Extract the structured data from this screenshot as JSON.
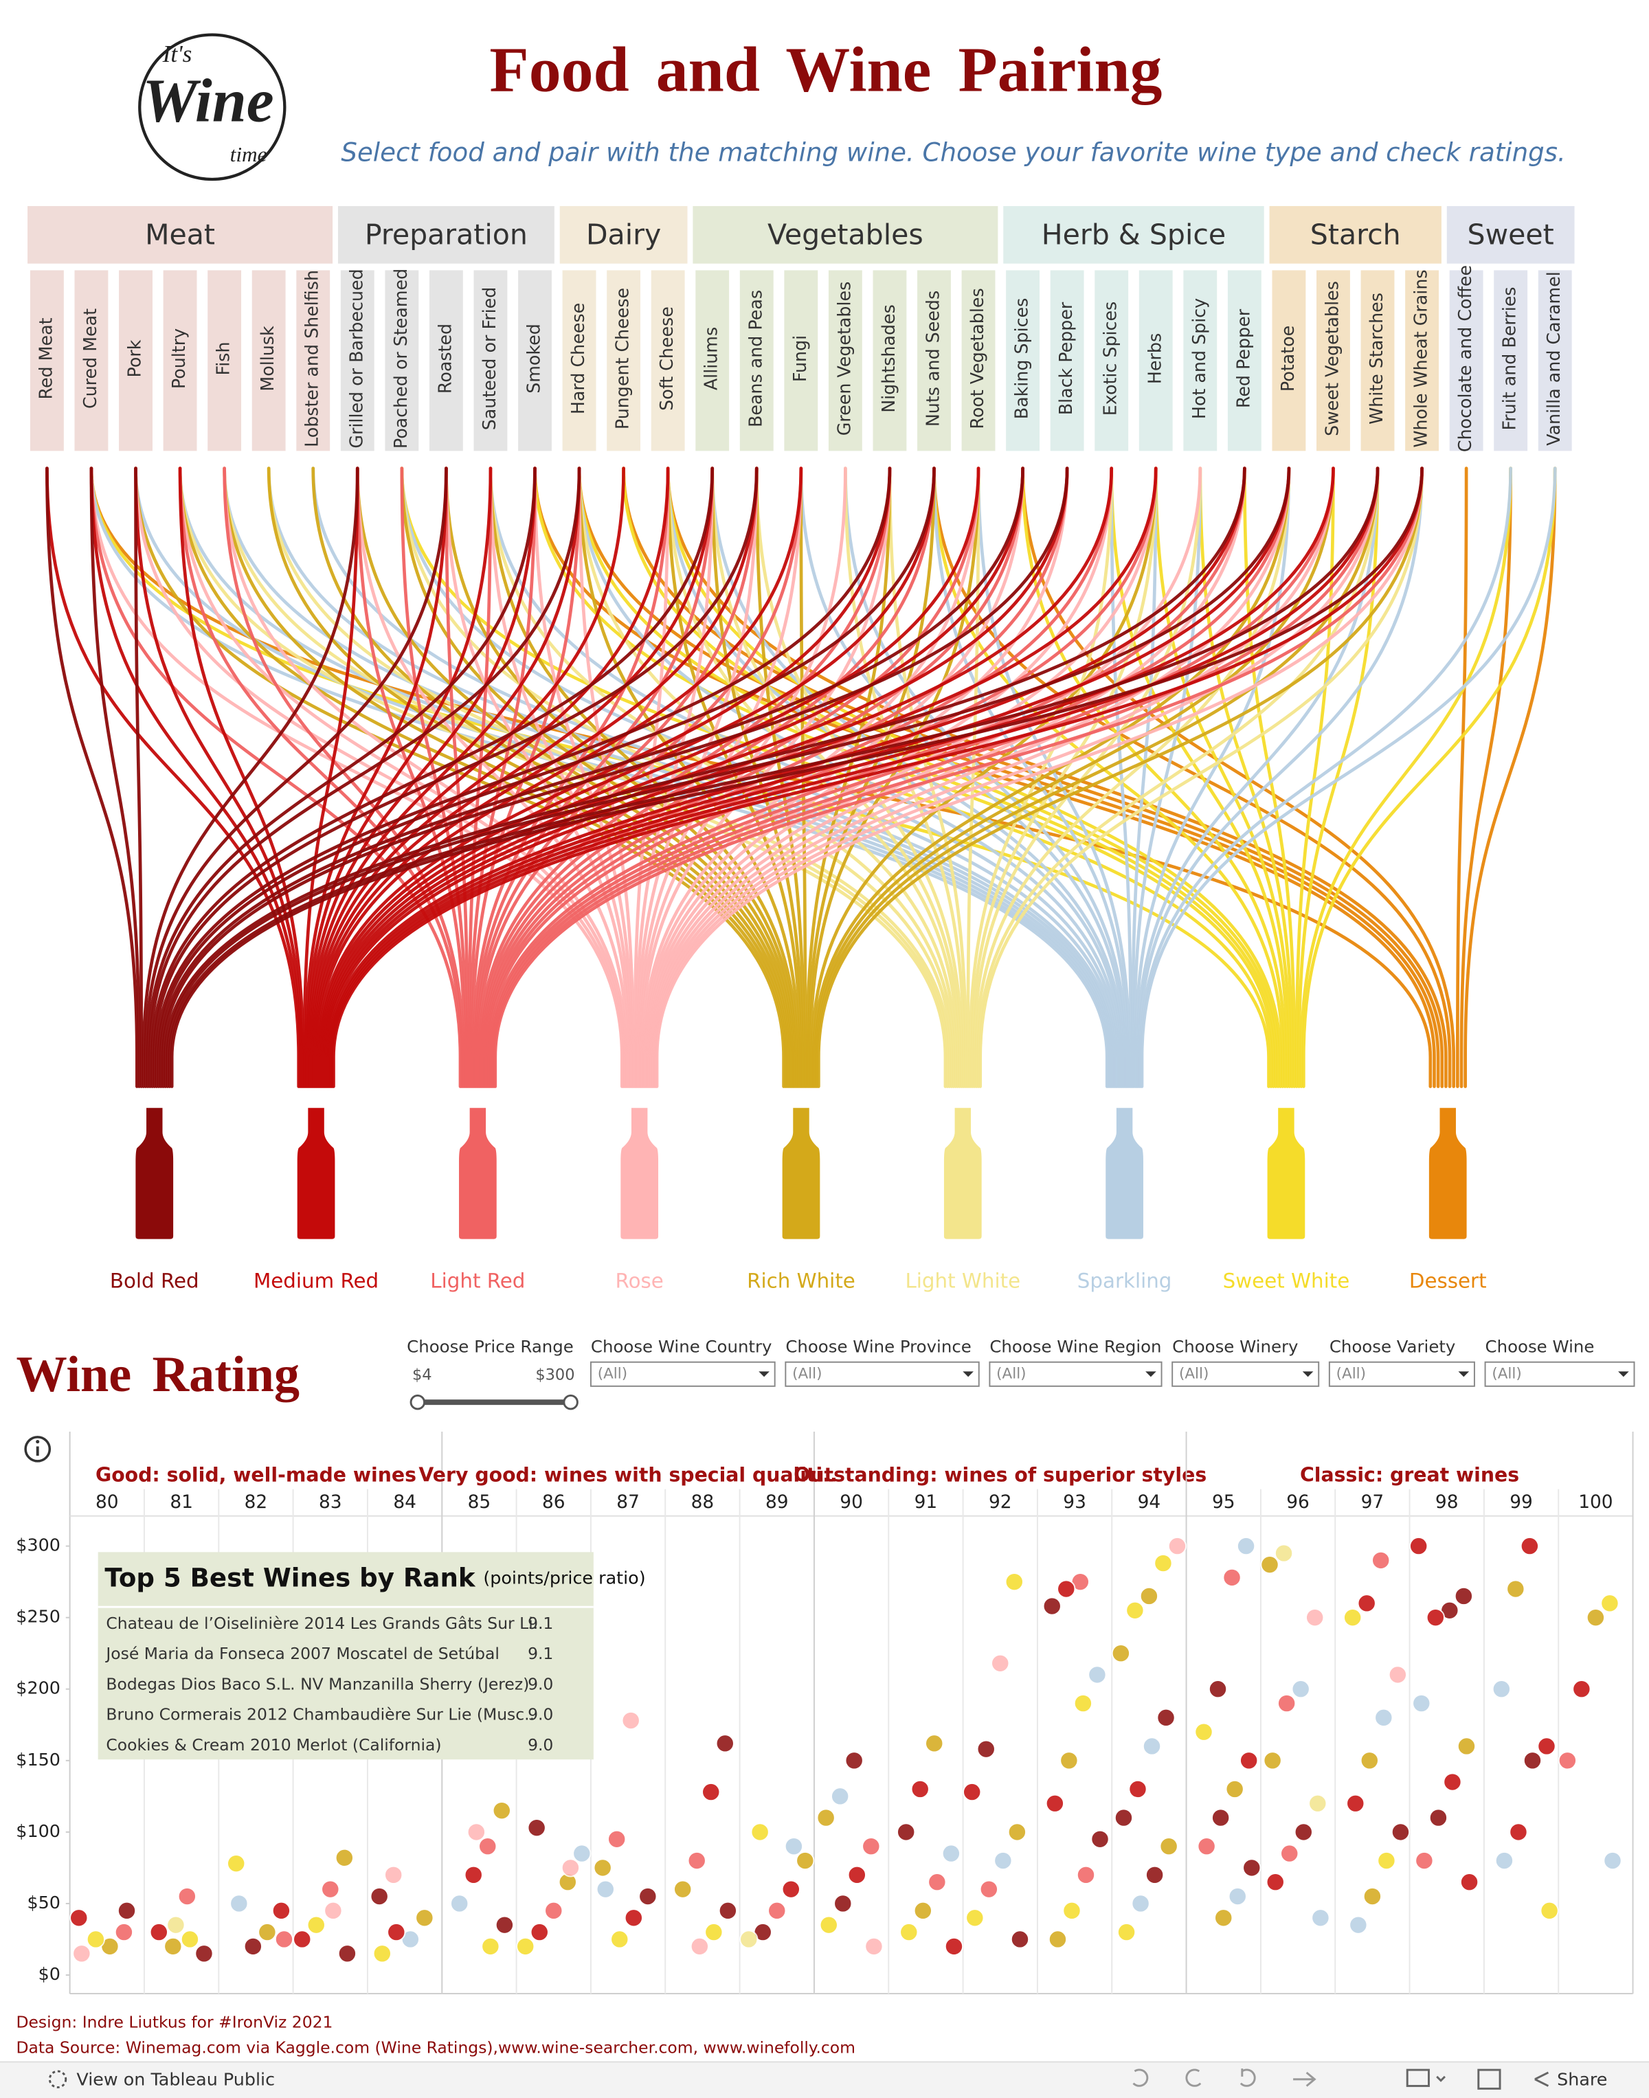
{
  "header": {
    "logo": [
      "It's",
      "Wine",
      "time"
    ],
    "title": "Food and Wine Pairing",
    "subtitle": "Select food and pair with the matching wine. Choose your favorite wine type and check ratings."
  },
  "pairing": {
    "food_groups": [
      {
        "name": "Meat",
        "color": "#f0dcd8",
        "items": [
          {
            "name": "Red Meat",
            "wines": [
              0,
              1
            ]
          },
          {
            "name": "Cured Meat",
            "wines": [
              0,
              1,
              2,
              3,
              6,
              7,
              8
            ]
          },
          {
            "name": "Pork",
            "wines": [
              0,
              1,
              3,
              4,
              6
            ]
          },
          {
            "name": "Poultry",
            "wines": [
              1,
              2,
              3,
              4,
              5,
              6
            ]
          },
          {
            "name": "Fish",
            "wines": [
              2,
              3,
              4,
              5,
              6
            ]
          },
          {
            "name": "Mollusk",
            "wines": [
              4,
              5,
              6
            ]
          },
          {
            "name": "Lobster and Shelfish",
            "wines": [
              4,
              6
            ]
          }
        ]
      },
      {
        "name": "Preparation",
        "color": "#e4e4e4",
        "items": [
          {
            "name": "Grilled or Barbecued",
            "wines": [
              0,
              1,
              2,
              3,
              4
            ]
          },
          {
            "name": "Poached or Steamed",
            "wines": [
              2,
              4,
              5,
              6,
              7
            ]
          },
          {
            "name": "Roasted",
            "wines": [
              0,
              1,
              2,
              3,
              4
            ]
          },
          {
            "name": "Sauteed or Fried",
            "wines": [
              1,
              2,
              3,
              4,
              5,
              6
            ]
          },
          {
            "name": "Smoked",
            "wines": [
              0,
              1,
              2,
              3,
              7,
              8
            ]
          }
        ]
      },
      {
        "name": "Dairy",
        "color": "#f3ead8",
        "items": [
          {
            "name": "Hard Cheese",
            "wines": [
              0,
              1,
              2,
              3,
              4,
              5,
              6,
              7,
              8
            ]
          },
          {
            "name": "Pungent Cheese",
            "wines": [
              1,
              7,
              8
            ]
          },
          {
            "name": "Soft Cheese",
            "wines": [
              1,
              2,
              3,
              4,
              5,
              6,
              7,
              8
            ]
          }
        ]
      },
      {
        "name": "Vegetables",
        "color": "#e4ead6",
        "items": [
          {
            "name": "Alliums",
            "wines": [
              0,
              1,
              2,
              3,
              4,
              5,
              6
            ]
          },
          {
            "name": "Beans and Peas",
            "wines": [
              0,
              1,
              2,
              3,
              4,
              5
            ]
          },
          {
            "name": "Fungi",
            "wines": [
              1,
              2,
              3,
              4,
              6
            ]
          },
          {
            "name": "Green Vegetables",
            "wines": [
              3,
              5,
              6
            ]
          },
          {
            "name": "Nightshades",
            "wines": [
              0,
              1,
              2,
              3,
              4,
              5
            ]
          },
          {
            "name": "Nuts and Seeds",
            "wines": [
              0,
              1,
              2,
              4,
              6,
              7,
              8
            ]
          },
          {
            "name": "Root Vegetables",
            "wines": [
              1,
              2,
              3,
              4,
              5,
              6
            ]
          }
        ]
      },
      {
        "name": "Herb & Spice",
        "color": "#dfeeeb",
        "items": [
          {
            "name": "Baking Spices",
            "wines": [
              0,
              1,
              2,
              3,
              7,
              8
            ]
          },
          {
            "name": "Black Pepper",
            "wines": [
              0,
              1,
              2,
              3
            ]
          },
          {
            "name": "Exotic Spices",
            "wines": [
              1,
              2,
              3,
              5,
              6,
              7
            ]
          },
          {
            "name": "Herbs",
            "wines": [
              1,
              2,
              3,
              4,
              5,
              6,
              7
            ]
          },
          {
            "name": "Hot and Spicy",
            "wines": [
              3,
              5,
              6,
              7
            ]
          },
          {
            "name": "Red Pepper",
            "wines": [
              0,
              1,
              2,
              3,
              7
            ]
          }
        ]
      },
      {
        "name": "Starch",
        "color": "#f4e2c4",
        "items": [
          {
            "name": "Potatoe",
            "wines": [
              0,
              1,
              2,
              3,
              4,
              5,
              6
            ]
          },
          {
            "name": "Sweet Vegetables",
            "wines": [
              1,
              2,
              3,
              4,
              7
            ]
          },
          {
            "name": "White Starches",
            "wines": [
              0,
              1,
              2,
              3,
              4,
              5,
              6,
              7
            ]
          },
          {
            "name": "Whole Wheat Grains",
            "wines": [
              0,
              1,
              2,
              3,
              4,
              5,
              6
            ]
          }
        ]
      },
      {
        "name": "Sweet",
        "color": "#e1e4ee",
        "items": [
          {
            "name": "Chocolate and Coffee",
            "wines": [
              8
            ]
          },
          {
            "name": "Fruit and Berries",
            "wines": [
              6,
              7,
              8
            ]
          },
          {
            "name": "Vanilla and Caramel",
            "wines": [
              6,
              7,
              8
            ]
          }
        ]
      }
    ],
    "wines": [
      {
        "name": "Bold Red",
        "color": "#8b0a0a"
      },
      {
        "name": "Medium Red",
        "color": "#c40a0a"
      },
      {
        "name": "Light Red",
        "color": "#f06262"
      },
      {
        "name": "Rose",
        "color": "#ffb4b4"
      },
      {
        "name": "Rich White",
        "color": "#d4a91a"
      },
      {
        "name": "Light White",
        "color": "#f3e58c"
      },
      {
        "name": "Sparkling",
        "color": "#b7cfe3"
      },
      {
        "name": "Sweet White",
        "color": "#f5dc2a"
      },
      {
        "name": "Dessert",
        "color": "#e8870c"
      }
    ]
  },
  "filters": {
    "price_range": {
      "label": "Choose Price Range",
      "min": "$4",
      "max": "$300"
    },
    "dropdowns": [
      {
        "label": "Choose Wine Country",
        "value": "(All)"
      },
      {
        "label": "Choose Wine Province",
        "value": "(All)"
      },
      {
        "label": "Choose Wine Region",
        "value": "(All)"
      },
      {
        "label": "Choose Winery",
        "value": "(All)"
      },
      {
        "label": "Choose Variety",
        "value": "(All)"
      },
      {
        "label": "Choose Wine",
        "value": "(All)"
      }
    ]
  },
  "chart_data": {
    "type": "scatter",
    "title": "Wine Rating",
    "bands": [
      {
        "label": "Good: solid, well-made wines",
        "from": 80,
        "to": 84
      },
      {
        "label": "Very good: wines with special qualiti..",
        "from": 85,
        "to": 89
      },
      {
        "label": "Outstanding: wines of superior styles",
        "from": 90,
        "to": 94
      },
      {
        "label": "Classic: great wines",
        "from": 95,
        "to": 100
      }
    ],
    "xlim": [
      79.5,
      100.5
    ],
    "xticks": [
      80,
      81,
      82,
      83,
      84,
      85,
      86,
      87,
      88,
      89,
      90,
      91,
      92,
      93,
      94,
      95,
      96,
      97,
      98,
      99,
      100
    ],
    "ylim": [
      -13,
      322
    ],
    "yticks": [
      {
        "value": 0,
        "label": "$0"
      },
      {
        "value": 50,
        "label": "$50"
      },
      {
        "value": 100,
        "label": "$100"
      },
      {
        "value": 150,
        "label": "$150"
      },
      {
        "value": 200,
        "label": "$200"
      },
      {
        "value": 250,
        "label": "$250"
      },
      {
        "value": 300,
        "label": "$300"
      }
    ],
    "grid": false,
    "x": [
      80,
      80,
      80,
      80,
      80,
      80,
      81,
      81,
      81,
      81,
      81,
      81,
      82,
      82,
      82,
      82,
      82,
      82,
      83,
      83,
      83,
      83,
      83,
      83,
      84,
      84,
      84,
      84,
      84,
      84,
      85,
      85,
      85,
      85,
      85,
      85,
      85,
      86,
      86,
      86,
      86,
      86,
      86,
      86,
      87,
      87,
      87,
      87,
      87,
      87,
      87,
      88,
      88,
      88,
      88,
      88,
      88,
      88,
      89,
      89,
      89,
      89,
      89,
      89,
      89,
      90,
      90,
      90,
      90,
      90,
      90,
      90,
      90,
      91,
      91,
      91,
      91,
      91,
      91,
      91,
      91,
      92,
      92,
      92,
      92,
      92,
      92,
      92,
      92,
      92,
      93,
      93,
      93,
      93,
      93,
      93,
      93,
      93,
      93,
      93,
      93,
      94,
      94,
      94,
      94,
      94,
      94,
      94,
      94,
      94,
      94,
      94,
      94,
      94,
      95,
      95,
      95,
      95,
      95,
      95,
      95,
      95,
      95,
      95,
      95,
      96,
      96,
      96,
      96,
      96,
      96,
      96,
      96,
      96,
      96,
      96,
      97,
      97,
      97,
      97,
      97,
      97,
      97,
      97,
      97,
      97,
      97,
      98,
      98,
      98,
      98,
      98,
      98,
      98,
      98,
      98,
      98,
      99,
      99,
      99,
      99,
      99,
      99,
      99,
      99,
      100,
      100,
      100,
      100,
      100
    ],
    "y": [
      40,
      30,
      20,
      25,
      15,
      45,
      55,
      20,
      30,
      15,
      25,
      35,
      78,
      45,
      30,
      20,
      50,
      25,
      82,
      60,
      35,
      25,
      15,
      45,
      70,
      55,
      40,
      25,
      30,
      15,
      115,
      90,
      70,
      50,
      35,
      20,
      100,
      103,
      85,
      65,
      45,
      30,
      20,
      75,
      178,
      95,
      75,
      55,
      40,
      25,
      60,
      162,
      128,
      80,
      60,
      45,
      30,
      20,
      100,
      80,
      60,
      45,
      30,
      25,
      90,
      150,
      125,
      110,
      90,
      70,
      50,
      35,
      20,
      162,
      130,
      100,
      85,
      65,
      45,
      30,
      20,
      275,
      218,
      158,
      128,
      100,
      80,
      60,
      40,
      25,
      275,
      270,
      258,
      210,
      190,
      150,
      120,
      95,
      70,
      45,
      25,
      300,
      288,
      265,
      255,
      225,
      180,
      160,
      130,
      110,
      90,
      70,
      50,
      30,
      300,
      278,
      200,
      170,
      150,
      130,
      110,
      90,
      75,
      55,
      40,
      295,
      287,
      250,
      200,
      190,
      150,
      120,
      100,
      85,
      65,
      40,
      290,
      260,
      250,
      210,
      180,
      150,
      120,
      100,
      80,
      55,
      35,
      300,
      265,
      255,
      250,
      190,
      160,
      135,
      110,
      80,
      65,
      300,
      270,
      200,
      160,
      150,
      100,
      80,
      45,
      260,
      250,
      200,
      150,
      80
    ],
    "wine": [
      1,
      2,
      4,
      7,
      3,
      0,
      2,
      4,
      1,
      0,
      7,
      5,
      7,
      1,
      4,
      0,
      6,
      2,
      4,
      2,
      7,
      1,
      0,
      3,
      3,
      0,
      4,
      6,
      1,
      7,
      4,
      2,
      1,
      6,
      0,
      7,
      3,
      0,
      6,
      4,
      2,
      1,
      7,
      3,
      3,
      2,
      4,
      0,
      1,
      7,
      6,
      0,
      1,
      2,
      4,
      0,
      7,
      3,
      7,
      4,
      1,
      2,
      0,
      5,
      6,
      0,
      6,
      4,
      2,
      1,
      0,
      7,
      3,
      4,
      1,
      0,
      6,
      2,
      4,
      7,
      1,
      7,
      3,
      0,
      1,
      4,
      6,
      2,
      7,
      0,
      2,
      1,
      0,
      6,
      7,
      4,
      1,
      0,
      2,
      7,
      4,
      3,
      7,
      4,
      7,
      4,
      0,
      6,
      1,
      0,
      4,
      0,
      6,
      7,
      6,
      2,
      0,
      7,
      1,
      4,
      0,
      2,
      0,
      6,
      4,
      5,
      4,
      3,
      6,
      2,
      4,
      5,
      0,
      2,
      1,
      6,
      2,
      1,
      7,
      3,
      6,
      4,
      1,
      0,
      7,
      4,
      6,
      1,
      0,
      0,
      1,
      6,
      4,
      1,
      0,
      2,
      1,
      1,
      4,
      6,
      1,
      0,
      1,
      6,
      7,
      7,
      4,
      1,
      2,
      6
    ]
  },
  "top5": {
    "title": "Top 5 Best Wines by Rank",
    "note": "(points/price ratio)",
    "rows": [
      [
        "Chateau de l’Oiselinière 2014 Les Grands Gâts Sur Li..",
        "9.1"
      ],
      [
        "José Maria da Fonseca 2007  Moscatel de Setúbal",
        "9.1"
      ],
      [
        "Bodegas Dios Baco S.L. NV Manzanilla Sherry (Jerez)",
        "9.0"
      ],
      [
        "Bruno Cormerais 2012 Chambaudière Sur Lie  (Musc..",
        "9.0"
      ],
      [
        "Cookies & Cream 2010 Merlot (California)",
        "9.0"
      ]
    ]
  },
  "footer": {
    "credits": [
      "Design: Indre Liutkus for #IronViz 2021",
      "Data Source: Winemag.com via Kaggle.com (Wine Ratings),www.wine-searcher.com, www.winefolly.com"
    ],
    "toolbar": {
      "view": "View on Tableau Public",
      "share": "Share"
    }
  }
}
